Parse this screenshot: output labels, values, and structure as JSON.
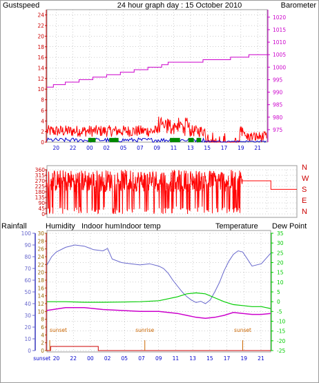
{
  "title": "24 hour graph day : 15 October 2010",
  "colors": {
    "gust": "#ff0000",
    "wind": "#0000cc",
    "windrun": "#008800",
    "barometer": "#cc00cc",
    "direction": "#ff0000",
    "rainfall": "#cc0000",
    "humidity": "#6666cc",
    "indoor_hum": "#996600",
    "indoor_temp": "#cc00cc",
    "temperature": "#00cc00",
    "dew_point": "#cc00cc",
    "axis_left_blue": "#6666cc",
    "axis_right_green": "#00cc00",
    "sun_marker": "#cc6600",
    "grid": "#999999"
  },
  "chart_data": [
    {
      "type": "line",
      "panel": "wind-barometer",
      "ylabel_left": "Gustspeed",
      "ylabel_right": "Barometer",
      "left_ticks": [
        "24",
        "22",
        "20",
        "18",
        "16",
        "14",
        "12",
        "10",
        "8",
        "6",
        "4",
        "2",
        "0"
      ],
      "right_ticks": [
        "1020",
        "1015",
        "1010",
        "1005",
        "1000",
        "995",
        "990",
        "985",
        "980",
        "975"
      ],
      "ylim_left": [
        0,
        25
      ],
      "ylim_right": [
        970,
        1023
      ],
      "x_ticks": [
        "20",
        "22",
        "00",
        "02",
        "05",
        "07",
        "09",
        "11",
        "13",
        "15",
        "17",
        "19",
        "21"
      ],
      "barometer": {
        "x": [
          0,
          0.3,
          0.7,
          2.0,
          3.5,
          5.0,
          6.5,
          8.0,
          9.5,
          11.0,
          12.5,
          13.2,
          14.0,
          15.5,
          17.0,
          18.5,
          20.0,
          21.0,
          22.0,
          23.0,
          24.0
        ],
        "y": [
          992,
          992,
          993,
          994,
          995,
          996,
          997,
          998,
          999,
          1000,
          1001,
          1002,
          1002,
          1002,
          1003,
          1003,
          1004,
          1004,
          1005,
          1005,
          1005
        ]
      },
      "gust_range": [
        0,
        4
      ],
      "wind_range": [
        0,
        1
      ]
    },
    {
      "type": "scatter",
      "panel": "wind-direction",
      "left_ticks": [
        "360",
        "315",
        "270",
        "225",
        "180",
        "135",
        "90",
        "45",
        "0"
      ],
      "right_labels": [
        "N",
        "W",
        "S",
        "E",
        "N"
      ],
      "ylim": [
        0,
        360
      ],
      "tail": {
        "x": [
          18.8,
          19.3,
          19.3,
          21.5,
          21.5,
          24.0
        ],
        "y": [
          270,
          270,
          270,
          270,
          200,
          200
        ]
      }
    },
    {
      "type": "line",
      "panel": "temp-humidity-rain",
      "ylabel_rain": "Rainfall",
      "ylabel_humidity": "Humidity",
      "legend": [
        "Indoor hum",
        "Indoor temp",
        "Temperature",
        "Dew Point"
      ],
      "humidity_ticks": [
        "100",
        "90",
        "80",
        "70",
        "60",
        "50",
        "40",
        "30",
        "20",
        "10",
        "0"
      ],
      "left2_ticks": [
        "30",
        "28",
        "26",
        "24",
        "22",
        "20",
        "18",
        "16",
        "14",
        "12",
        "10",
        "8",
        "6",
        "4",
        "2",
        "0"
      ],
      "right_ticks": [
        "35",
        "30",
        "25",
        "20",
        "15",
        "10",
        "5",
        "0",
        "-5",
        "-10",
        "-15",
        "-20",
        "-25"
      ],
      "ylim_humidity": [
        0,
        100
      ],
      "ylim_temp": [
        -25,
        35
      ],
      "humidity": {
        "x": [
          0,
          0.5,
          1.0,
          2.0,
          3.0,
          4.0,
          5.0,
          6.0,
          6.5,
          7.0,
          8.0,
          9.0,
          10.0,
          11.0,
          12.0,
          12.5,
          13.0,
          13.5,
          14.0,
          14.5,
          15.0,
          15.5,
          16.0,
          16.5,
          17.0,
          17.5,
          18.0,
          18.5,
          19.0,
          19.5,
          20.0,
          20.5,
          21.0,
          21.5,
          22.0,
          23.0,
          24.0
        ],
        "y": [
          73,
          80,
          84,
          88,
          90,
          89,
          86,
          85,
          87,
          78,
          75,
          74,
          73,
          74,
          72,
          70,
          66,
          60,
          55,
          50,
          46,
          43,
          41,
          42,
          40,
          43,
          50,
          58,
          68,
          76,
          82,
          85,
          84,
          78,
          72,
          74,
          83
        ]
      },
      "temperature": {
        "x": [
          0,
          2,
          4,
          6,
          8,
          10,
          12,
          13,
          14,
          15,
          16,
          17,
          18,
          19,
          20,
          21,
          22,
          23,
          24
        ],
        "y": [
          0,
          0,
          -0.3,
          -0.3,
          -0.2,
          0,
          0.5,
          1.5,
          2.5,
          4,
          4.5,
          4,
          2,
          0,
          -1.5,
          -2,
          -2.5,
          -2.5,
          -3.5
        ]
      },
      "dew_point": {
        "x": [
          0,
          2,
          4,
          6,
          8,
          10,
          12,
          13,
          14,
          15,
          16,
          17,
          18,
          19,
          20,
          21,
          22,
          23,
          24
        ],
        "y": [
          -4.5,
          -3,
          -3,
          -4,
          -4.5,
          -5,
          -5,
          -5.5,
          -6,
          -7,
          -8,
          -8.5,
          -8,
          -7,
          -5.5,
          -6,
          -6.5,
          -6.5,
          -6
        ]
      },
      "rainfall": {
        "x": [
          0,
          0.4,
          0.4,
          5.5,
          5.5,
          24.0
        ],
        "y": [
          0,
          0,
          1,
          1,
          0,
          0
        ]
      },
      "sun_markers": [
        {
          "label": "sunset",
          "x": 0.3
        },
        {
          "label": "sunrise",
          "x": 10.5
        },
        {
          "label": "sunset",
          "x": 21.0
        }
      ],
      "x_ticks": [
        "sunset",
        "20",
        "22",
        "00",
        "02",
        "05",
        "07",
        "09",
        "11",
        "13",
        "15",
        "17",
        "19",
        "21"
      ]
    }
  ]
}
